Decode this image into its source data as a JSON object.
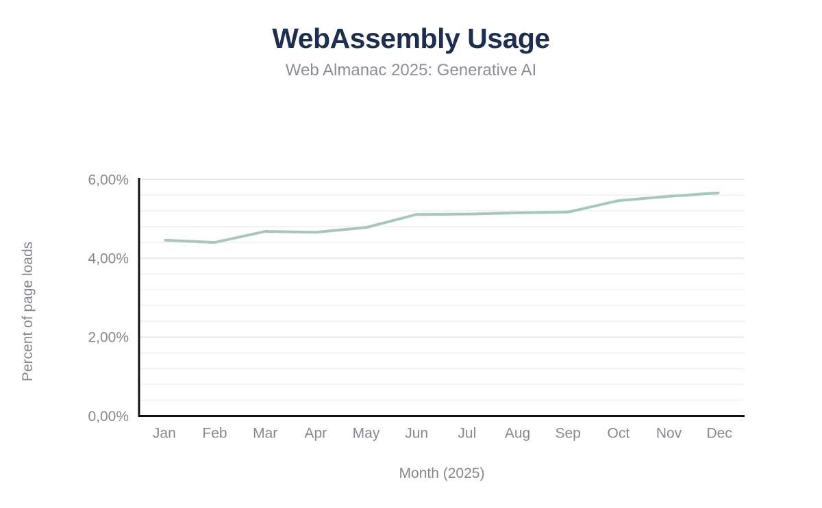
{
  "header": {
    "title": "WebAssembly Usage",
    "subtitle": "Web Almanac 2025: Generative AI"
  },
  "chart_data": {
    "type": "line",
    "title": "WebAssembly Usage",
    "subtitle": "Web Almanac 2025: Generative AI",
    "xlabel": "Month (2025)",
    "ylabel": "Percent of page loads",
    "categories": [
      "Jan",
      "Feb",
      "Mar",
      "Apr",
      "May",
      "Jun",
      "Jul",
      "Aug",
      "Sep",
      "Oct",
      "Nov",
      "Dec"
    ],
    "series": [
      {
        "name": "Percent of page loads",
        "values": [
          4.46,
          4.4,
          4.68,
          4.66,
          4.78,
          5.11,
          5.12,
          5.15,
          5.17,
          5.46,
          5.57,
          5.66
        ]
      }
    ],
    "ylim": [
      0,
      6
    ],
    "y_ticks": [
      {
        "value": 0,
        "label": "0,00%"
      },
      {
        "value": 2,
        "label": "2,00%"
      },
      {
        "value": 4,
        "label": "4,00%"
      },
      {
        "value": 6,
        "label": "6,00%"
      }
    ],
    "minor_grid_interval": 0.4,
    "grid": "on",
    "legend": "none",
    "colors": {
      "title": "#1e2e4f",
      "subtitle": "#8a8e96",
      "series_line": "#a9c7b6",
      "axis_line": "#111111",
      "tick_label": "#85898f",
      "axis_title": "#83878d",
      "minor_gridline": "#f3f3f3",
      "major_gridline": "#e9e9e9",
      "background": "#ffffff"
    }
  }
}
